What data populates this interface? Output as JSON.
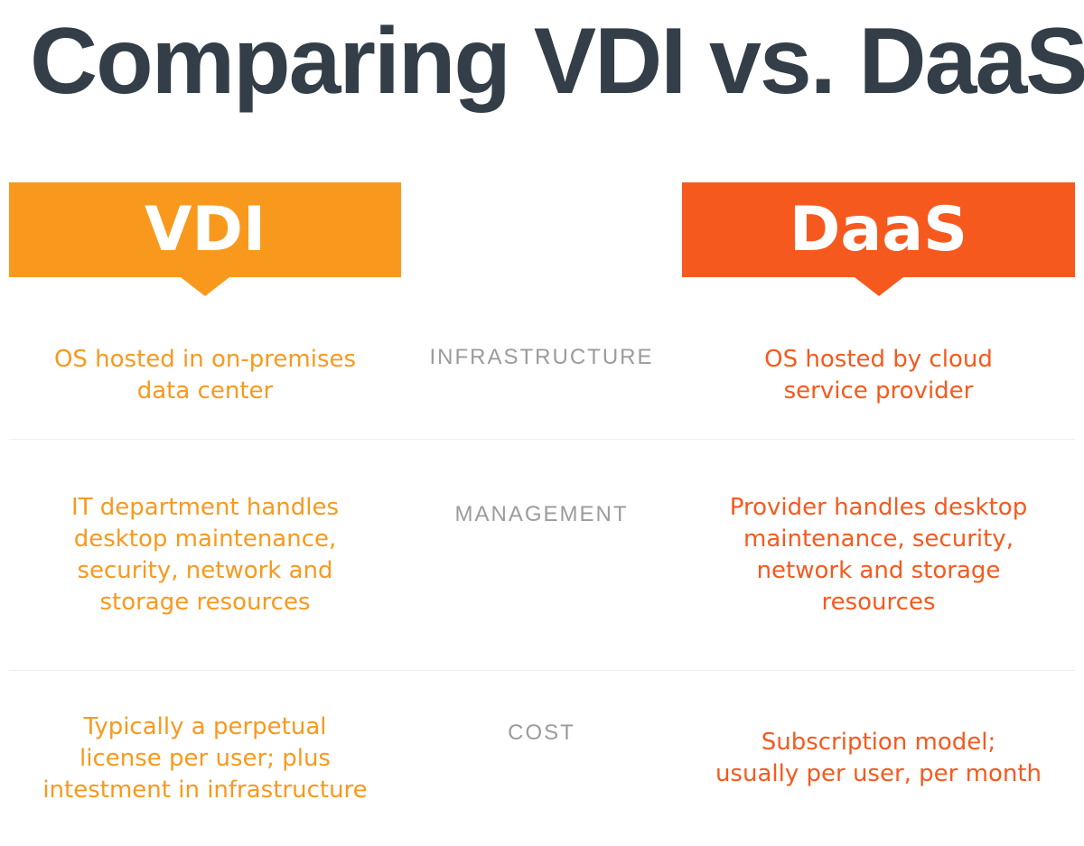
{
  "title": "Comparing VDI vs. DaaS",
  "colors": {
    "title_text": "#333E48",
    "vdi_accent": "#F8991D",
    "daas_accent": "#F6591E",
    "row_label_gray": "#9B9B9B",
    "divider": "#EDEDED",
    "background": "#FFFFFF",
    "banner_text": "#FFFFFF"
  },
  "columns": {
    "vdi": {
      "header": "VDI"
    },
    "daas": {
      "header": "DaaS"
    }
  },
  "rows": [
    {
      "label": "INFRASTRUCTURE",
      "vdi": "OS hosted in on-premises\ndata center",
      "daas": "OS hosted by cloud\nservice provider"
    },
    {
      "label": "MANAGEMENT",
      "vdi": "IT department handles\ndesktop maintenance,\nsecurity, network and\nstorage resources",
      "daas": "Provider handles desktop\nmaintenance, security,\nnetwork and storage\nresources"
    },
    {
      "label": "COST",
      "vdi": "Typically a perpetual\nlicense per user; plus\nintestment in infrastructure",
      "daas": "Subscription model;\nusually per user, per month"
    }
  ]
}
